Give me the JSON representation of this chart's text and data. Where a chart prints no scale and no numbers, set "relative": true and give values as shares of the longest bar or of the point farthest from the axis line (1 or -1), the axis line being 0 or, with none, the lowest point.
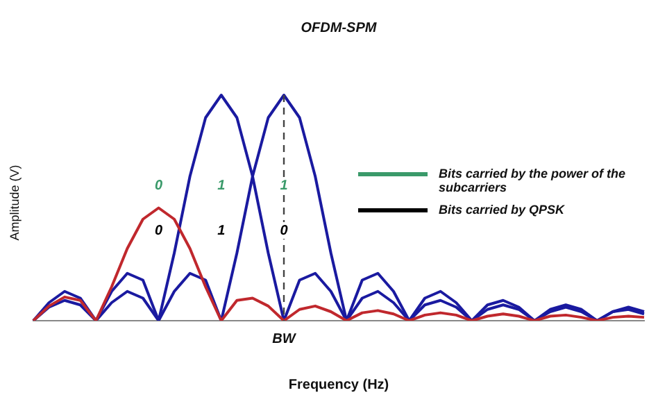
{
  "chart_data": {
    "type": "line",
    "title": "OFDM-SPM",
    "xlabel": "Frequency (Hz)",
    "ylabel": "Amplitude (V)",
    "relative": true,
    "marker": "none",
    "categories": [
      null,
      null,
      null,
      null,
      null,
      null,
      null,
      null,
      null,
      null,
      null,
      null,
      null,
      null,
      null,
      null,
      null,
      null,
      null,
      null,
      null,
      null,
      null,
      null,
      null,
      null,
      null,
      null,
      null,
      null,
      null,
      null,
      null,
      null,
      null,
      null,
      null,
      null,
      null,
      null
    ],
    "annotations": [
      {
        "text": "0",
        "y": 0.6
      },
      {
        "text": "1",
        "y": 0.6
      },
      {
        "text": "1",
        "y": 0.6
      },
      {
        "text": "0",
        "y": 0.4
      },
      {
        "text": "1",
        "y": 0.4
      },
      {
        "text": "0",
        "y": 0.4
      },
      "BW",
      "Bits carried by the power of the subcarriers",
      "Bits carried by QPSK"
    ],
    "series": [
      {
        "color": "#c0282d",
        "values": [
          0,
          0.065,
          0.105,
          0.09,
          0,
          0.15,
          0.32,
          0.45,
          0.5,
          0.45,
          0.32,
          0.15,
          0,
          0.09,
          0.1,
          0.065,
          0,
          0.05,
          0.065,
          0.04,
          0,
          0.035,
          0.045,
          0.03,
          0,
          0.025,
          0.035,
          0.025,
          0,
          0.02,
          0.03,
          0.02,
          0,
          0.02,
          0.025,
          0.015,
          0,
          0.015,
          0.02,
          0.015
        ]
      },
      {
        "color": "#1a1aa0",
        "values": [
          0,
          0.08,
          0.13,
          0.1,
          0,
          0.13,
          0.21,
          0.18,
          0,
          0.3,
          0.64,
          0.9,
          1,
          0.9,
          0.64,
          0.3,
          0,
          0.18,
          0.21,
          0.13,
          0,
          0.1,
          0.13,
          0.08,
          0,
          0.07,
          0.09,
          0.06,
          0,
          0.05,
          0.07,
          0.05,
          0,
          0.04,
          0.06,
          0.04,
          0,
          0.04,
          0.05,
          0.03
        ]
      },
      {
        "color": "#1a1aa0",
        "values": [
          0,
          0.06,
          0.09,
          0.07,
          0,
          0.08,
          0.13,
          0.1,
          0,
          0.13,
          0.21,
          0.18,
          0,
          0.3,
          0.64,
          0.9,
          1,
          0.9,
          0.64,
          0.3,
          0,
          0.18,
          0.21,
          0.13,
          0,
          0.1,
          0.13,
          0.08,
          0,
          0.07,
          0.09,
          0.06,
          0,
          0.05,
          0.07,
          0.05,
          0,
          0.04,
          0.06,
          0.04
        ]
      }
    ]
  }
}
